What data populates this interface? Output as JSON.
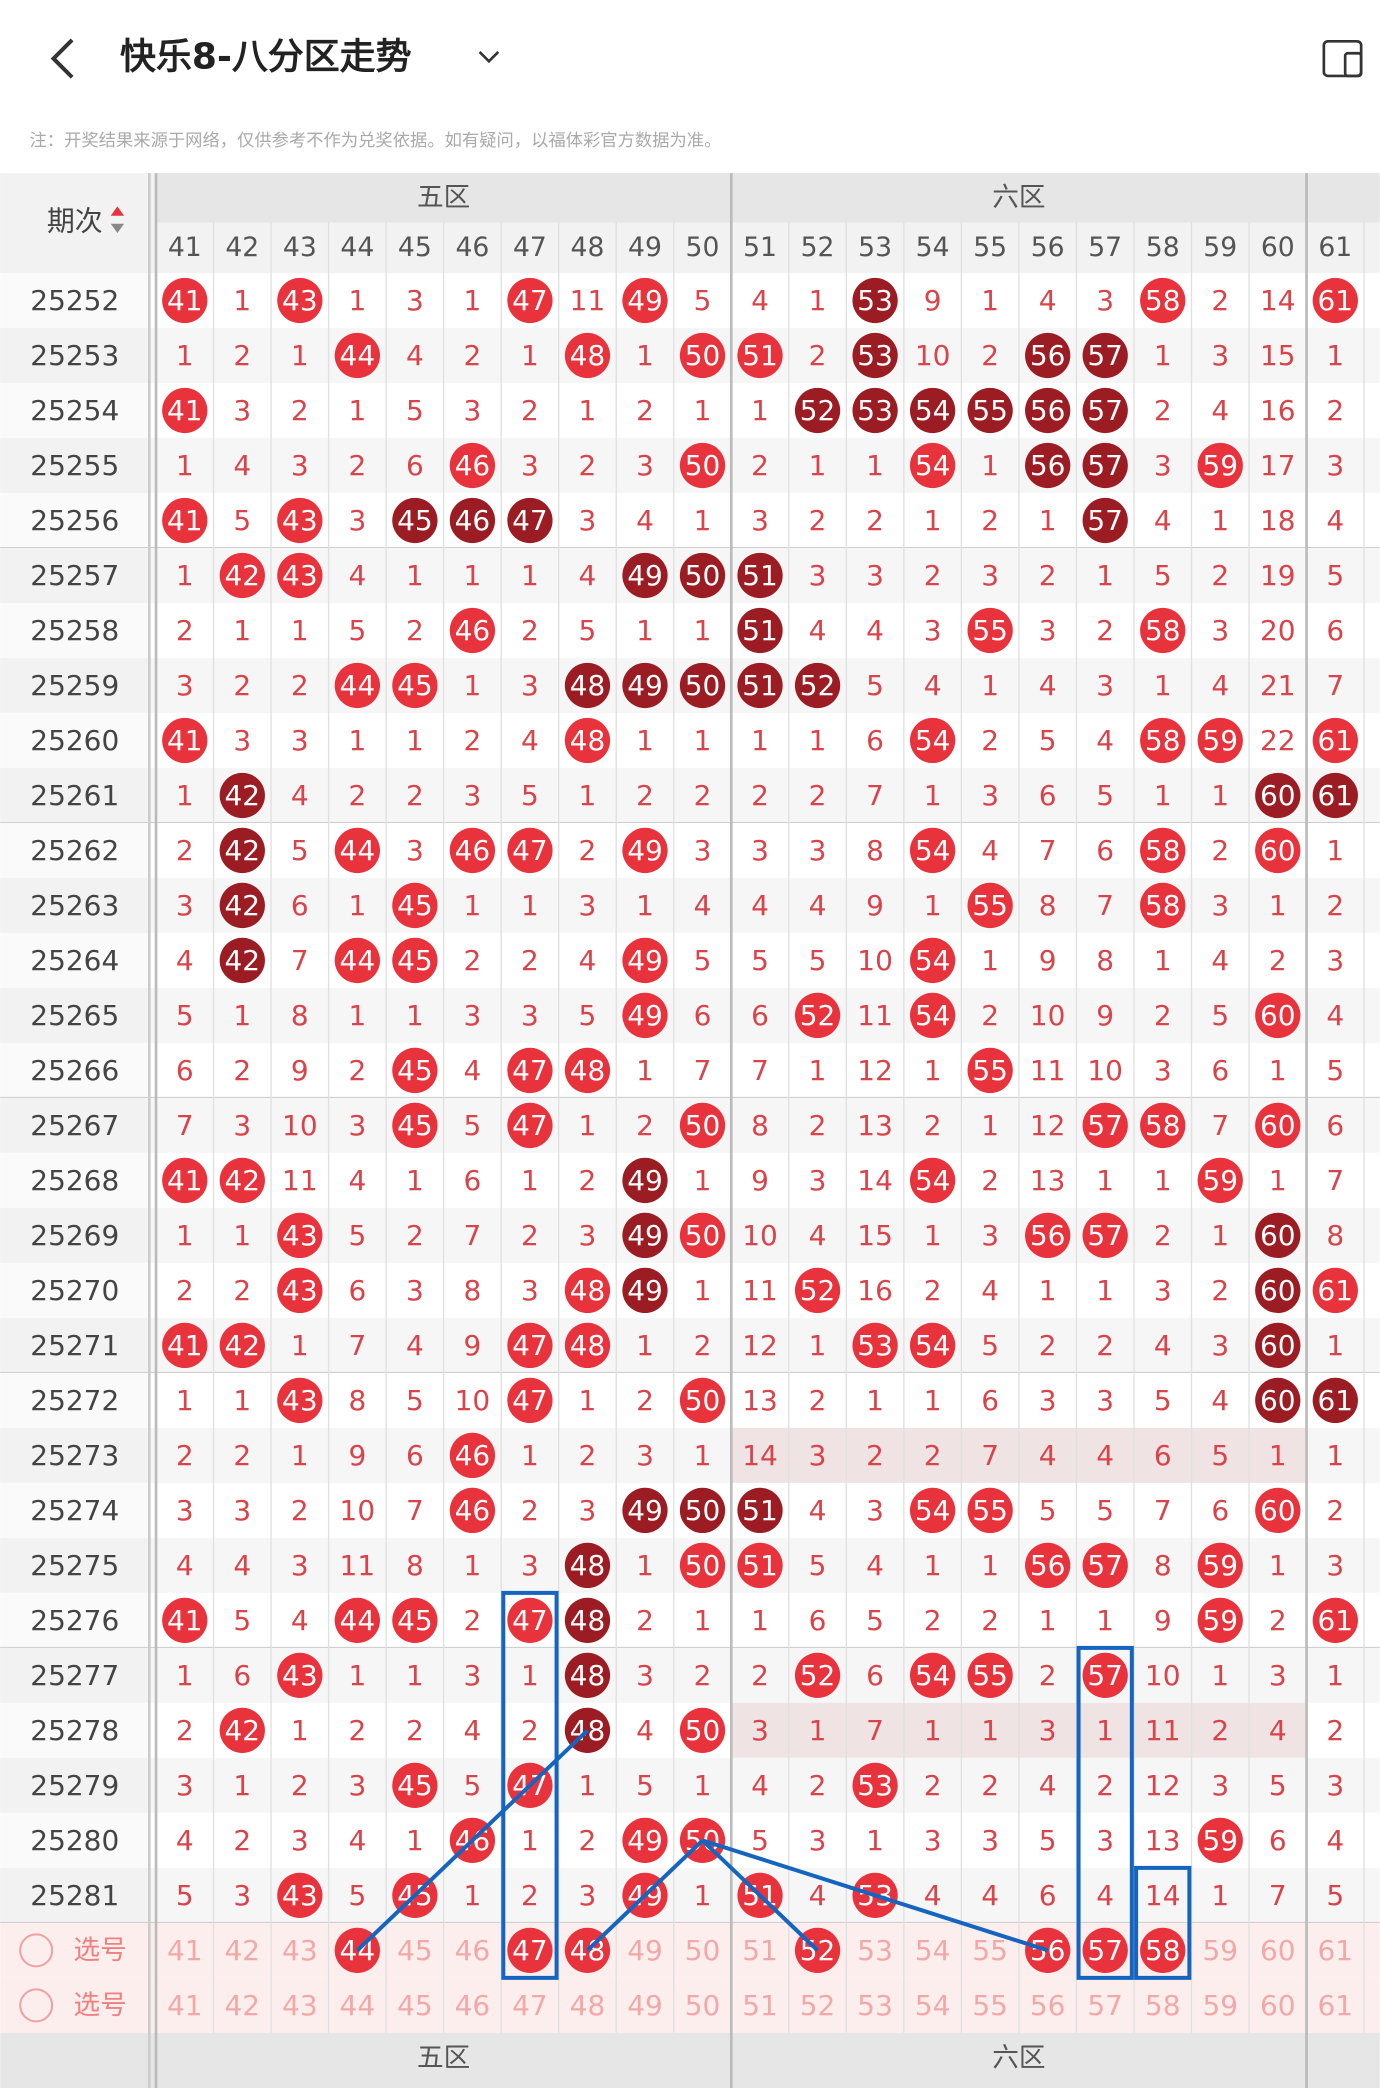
{
  "header": {
    "title": "快乐8-八分区走势",
    "note": "注：开奖结果来源于网络，仅供参考不作为兑奖依据。如有疑问，以福体彩官方数据为准。"
  },
  "table": {
    "period_label": "期次",
    "zones": [
      "五区",
      "六区"
    ],
    "columns": [
      41,
      42,
      43,
      44,
      45,
      46,
      47,
      48,
      49,
      50,
      51,
      52,
      53,
      54,
      55,
      56,
      57,
      58,
      59,
      60,
      61
    ],
    "rows": [
      {
        "period": "25252",
        "values": [
          41,
          1,
          43,
          1,
          3,
          1,
          47,
          11,
          49,
          5,
          4,
          1,
          53,
          9,
          1,
          4,
          3,
          58,
          2,
          14,
          61
        ],
        "marks": "r.r...r.r...d....r..r"
      },
      {
        "period": "25253",
        "values": [
          1,
          2,
          1,
          44,
          4,
          2,
          1,
          48,
          1,
          50,
          51,
          2,
          53,
          10,
          2,
          56,
          57,
          1,
          3,
          15,
          1
        ],
        "marks": "...r...r.rr.d..dd...."
      },
      {
        "period": "25254",
        "values": [
          41,
          3,
          2,
          1,
          5,
          3,
          2,
          1,
          2,
          1,
          1,
          52,
          53,
          54,
          55,
          56,
          57,
          2,
          4,
          16,
          2
        ],
        "marks": "r..........dddddd...."
      },
      {
        "period": "25255",
        "values": [
          1,
          4,
          3,
          2,
          6,
          46,
          3,
          2,
          3,
          50,
          2,
          1,
          1,
          54,
          1,
          56,
          57,
          3,
          59,
          17,
          3
        ],
        "marks": ".....r...r...r.dd.r.."
      },
      {
        "period": "25256",
        "values": [
          41,
          5,
          43,
          3,
          45,
          46,
          47,
          3,
          4,
          1,
          3,
          2,
          2,
          1,
          2,
          1,
          57,
          4,
          1,
          18,
          4
        ],
        "marks": "r.r.ddd.........d...."
      },
      {
        "period": "25257",
        "values": [
          1,
          42,
          43,
          4,
          1,
          1,
          1,
          4,
          49,
          50,
          51,
          3,
          3,
          2,
          3,
          2,
          1,
          5,
          2,
          19,
          5
        ],
        "marks": ".rr.....ddd.........."
      },
      {
        "period": "25258",
        "values": [
          2,
          1,
          1,
          5,
          2,
          46,
          2,
          5,
          1,
          1,
          51,
          4,
          4,
          3,
          55,
          3,
          2,
          58,
          3,
          20,
          6
        ],
        "marks": ".....r....d...r..r..."
      },
      {
        "period": "25259",
        "values": [
          3,
          2,
          2,
          44,
          45,
          1,
          3,
          48,
          49,
          50,
          51,
          52,
          5,
          4,
          1,
          4,
          3,
          1,
          4,
          21,
          7
        ],
        "marks": "...rr..ddddd........."
      },
      {
        "period": "25260",
        "values": [
          41,
          3,
          3,
          1,
          1,
          2,
          4,
          48,
          1,
          1,
          1,
          1,
          6,
          54,
          2,
          5,
          4,
          58,
          59,
          22,
          61
        ],
        "marks": "r......r.....r...rr.r"
      },
      {
        "period": "25261",
        "values": [
          1,
          42,
          4,
          2,
          2,
          3,
          5,
          1,
          2,
          2,
          2,
          2,
          7,
          1,
          3,
          6,
          5,
          1,
          1,
          60,
          61
        ],
        "marks": ".d.................dd"
      },
      {
        "period": "25262",
        "values": [
          2,
          42,
          5,
          44,
          3,
          46,
          47,
          2,
          49,
          3,
          3,
          3,
          8,
          54,
          4,
          7,
          6,
          58,
          2,
          60,
          1
        ],
        "marks": ".d.r.rr.r....r...r.r."
      },
      {
        "period": "25263",
        "values": [
          3,
          42,
          6,
          1,
          45,
          1,
          1,
          3,
          1,
          4,
          4,
          4,
          9,
          1,
          55,
          8,
          7,
          58,
          3,
          1,
          2
        ],
        "marks": ".d..r.........r..r..."
      },
      {
        "period": "25264",
        "values": [
          4,
          42,
          7,
          44,
          45,
          2,
          2,
          4,
          49,
          5,
          5,
          5,
          10,
          54,
          1,
          9,
          8,
          1,
          4,
          2,
          3
        ],
        "marks": ".d.rr...r....r......."
      },
      {
        "period": "25265",
        "values": [
          5,
          1,
          8,
          1,
          1,
          3,
          3,
          5,
          49,
          6,
          6,
          52,
          11,
          54,
          2,
          10,
          9,
          2,
          5,
          60,
          4
        ],
        "marks": "........r..r.r.....r."
      },
      {
        "period": "25266",
        "values": [
          6,
          2,
          9,
          2,
          45,
          4,
          47,
          48,
          1,
          7,
          7,
          1,
          12,
          1,
          55,
          11,
          10,
          3,
          6,
          1,
          5
        ],
        "marks": "....r.rr......r......"
      },
      {
        "period": "25267",
        "values": [
          7,
          3,
          10,
          3,
          45,
          5,
          47,
          1,
          2,
          50,
          8,
          2,
          13,
          2,
          1,
          12,
          57,
          58,
          7,
          60,
          6
        ],
        "marks": "....r.r..r......rr.r."
      },
      {
        "period": "25268",
        "values": [
          41,
          42,
          11,
          4,
          1,
          6,
          1,
          2,
          49,
          1,
          9,
          3,
          14,
          54,
          2,
          13,
          1,
          1,
          59,
          1,
          7
        ],
        "marks": "rr......d....r....r.."
      },
      {
        "period": "25269",
        "values": [
          1,
          1,
          43,
          5,
          2,
          7,
          2,
          3,
          49,
          50,
          10,
          4,
          15,
          1,
          3,
          56,
          57,
          2,
          1,
          60,
          8
        ],
        "marks": "..r.....dr.....rr..d."
      },
      {
        "period": "25270",
        "values": [
          2,
          2,
          43,
          6,
          3,
          8,
          3,
          48,
          49,
          1,
          11,
          52,
          16,
          2,
          4,
          1,
          1,
          3,
          2,
          60,
          61
        ],
        "marks": "..r....rd..r.......dr"
      },
      {
        "period": "25271",
        "values": [
          41,
          42,
          1,
          7,
          4,
          9,
          47,
          48,
          1,
          2,
          12,
          1,
          53,
          54,
          5,
          2,
          2,
          4,
          3,
          60,
          1
        ],
        "marks": "rr....rr....rr.....d."
      },
      {
        "period": "25272",
        "values": [
          1,
          1,
          43,
          8,
          5,
          10,
          47,
          1,
          2,
          50,
          13,
          2,
          1,
          1,
          6,
          3,
          3,
          5,
          4,
          60,
          61
        ],
        "marks": "..r...r..r.........dd"
      },
      {
        "period": "25273",
        "values": [
          2,
          2,
          1,
          9,
          6,
          46,
          1,
          2,
          3,
          1,
          14,
          3,
          2,
          2,
          7,
          4,
          4,
          6,
          5,
          1,
          1
        ],
        "marks": ".....r...............",
        "shaded": true
      },
      {
        "period": "25274",
        "values": [
          3,
          3,
          2,
          10,
          7,
          46,
          2,
          3,
          49,
          50,
          51,
          4,
          3,
          54,
          55,
          5,
          5,
          7,
          6,
          60,
          2
        ],
        "marks": ".....r..ddd..rr....r."
      },
      {
        "period": "25275",
        "values": [
          4,
          4,
          3,
          11,
          8,
          1,
          3,
          48,
          1,
          50,
          51,
          5,
          4,
          1,
          1,
          56,
          57,
          8,
          59,
          1,
          3
        ],
        "marks": ".......d.rr....rr.r.."
      },
      {
        "period": "25276",
        "values": [
          41,
          5,
          4,
          44,
          45,
          2,
          47,
          48,
          2,
          1,
          1,
          6,
          5,
          2,
          2,
          1,
          1,
          9,
          59,
          2,
          61
        ],
        "marks": "r..rr.rd..........r.r"
      },
      {
        "period": "25277",
        "values": [
          1,
          6,
          43,
          1,
          1,
          3,
          1,
          48,
          3,
          2,
          2,
          52,
          6,
          54,
          55,
          2,
          57,
          10,
          1,
          3,
          1
        ],
        "marks": "..r....d...r.rr.r...."
      },
      {
        "period": "25278",
        "values": [
          2,
          42,
          1,
          2,
          2,
          4,
          2,
          48,
          4,
          50,
          3,
          1,
          7,
          1,
          1,
          3,
          1,
          11,
          2,
          4,
          2
        ],
        "marks": ".r.....d.r...........",
        "shaded": true
      },
      {
        "period": "25279",
        "values": [
          3,
          1,
          2,
          3,
          45,
          5,
          47,
          1,
          5,
          1,
          4,
          2,
          53,
          2,
          2,
          4,
          2,
          12,
          3,
          5,
          3
        ],
        "marks": "....r.r.....r........"
      },
      {
        "period": "25280",
        "values": [
          4,
          2,
          3,
          4,
          1,
          46,
          1,
          2,
          49,
          50,
          5,
          3,
          1,
          3,
          3,
          5,
          3,
          13,
          59,
          6,
          4
        ],
        "marks": ".....r..rr........r.."
      },
      {
        "period": "25281",
        "values": [
          5,
          3,
          43,
          5,
          45,
          1,
          2,
          3,
          49,
          1,
          51,
          4,
          53,
          4,
          4,
          6,
          4,
          14,
          1,
          7,
          5
        ],
        "marks": "..r.r...r.r.r........"
      }
    ],
    "select_rows": [
      {
        "label": "选号",
        "selected": [
          44,
          47,
          48,
          52,
          56,
          57,
          58
        ]
      },
      {
        "label": "选号",
        "selected": []
      }
    ]
  }
}
